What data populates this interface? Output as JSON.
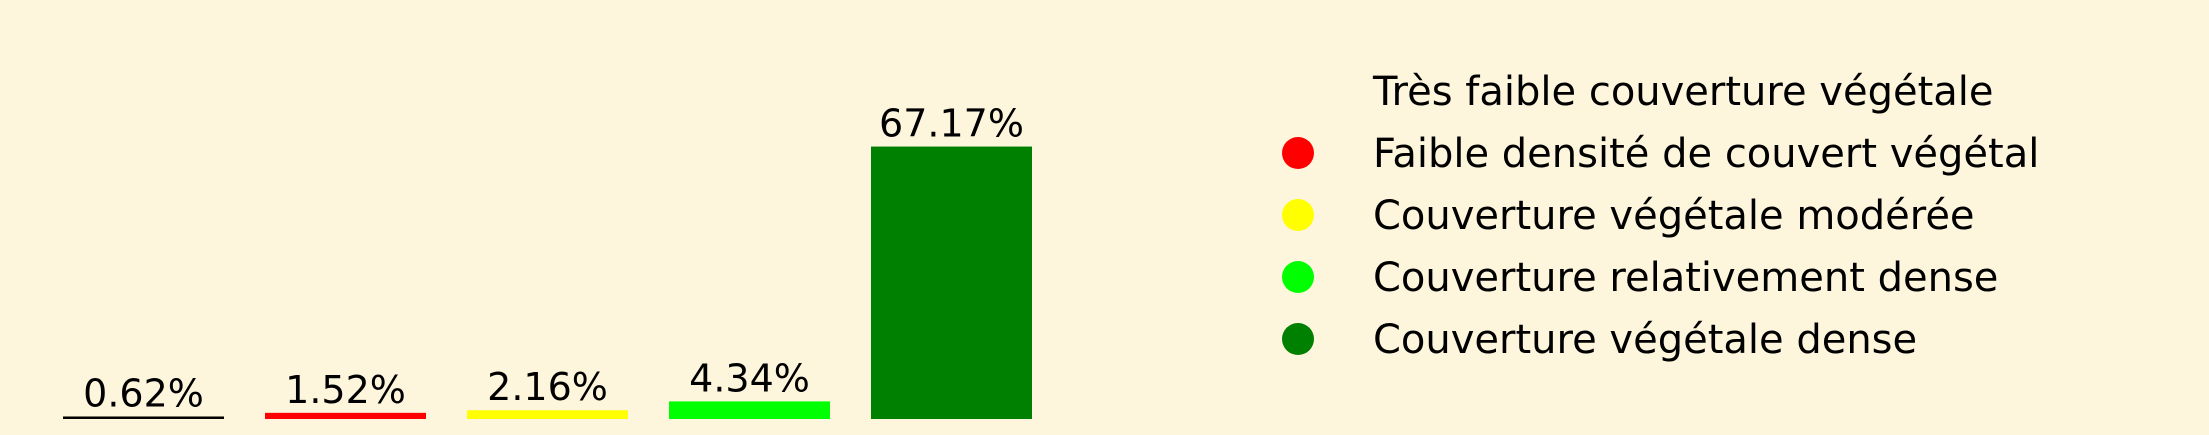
{
  "chart_data": {
    "type": "bar",
    "title": "",
    "xlabel": "",
    "ylabel": "",
    "grid": false,
    "legend_position": "right",
    "ylim": [
      0,
      100
    ],
    "categories": [
      "Très faible couverture végétale",
      "Faible densité de couvert végétal",
      "Couverture végétale modérée",
      "Couverture relativement dense",
      "Couverture végétale dense"
    ],
    "values": [
      0.62,
      1.52,
      2.16,
      4.34,
      67.17
    ],
    "value_labels": [
      "0.62%",
      "1.52%",
      "2.16%",
      "4.34%",
      "67.17%"
    ],
    "colors": [
      "#000000",
      "#ff0000",
      "#ffff00",
      "#00ff00",
      "#008000"
    ],
    "legend": [
      {
        "label": "Très faible couverture végétale",
        "color": "#fdf6dc"
      },
      {
        "label": "Faible densité de couvert végétal",
        "color": "#ff0000"
      },
      {
        "label": "Couverture végétale modérée",
        "color": "#ffff00"
      },
      {
        "label": "Couverture relativement dense",
        "color": "#00ff00"
      },
      {
        "label": "Couverture végétale dense",
        "color": "#008000"
      }
    ]
  }
}
